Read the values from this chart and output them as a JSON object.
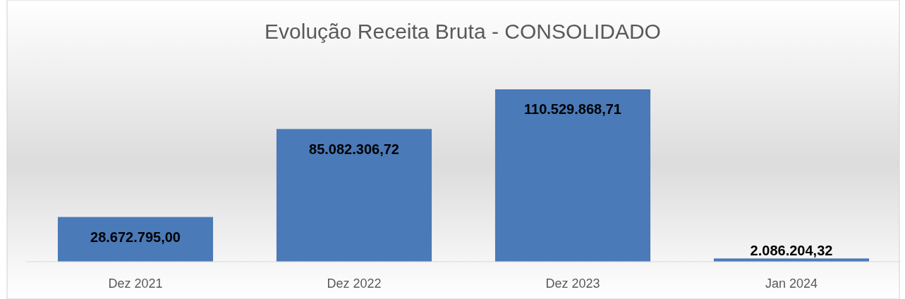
{
  "chart_data": {
    "type": "bar",
    "title": "Evolução Receita Bruta - CONSOLIDADO",
    "categories": [
      "Dez 2021",
      "Dez 2022",
      "Dez 2023",
      "Jan 2024"
    ],
    "values": [
      28672795.0,
      85082306.72,
      110529868.71,
      2086204.32
    ],
    "value_labels": [
      "28.672.795,00",
      "85.082.306,72",
      "110.529.868,71",
      "2.086.204,32"
    ],
    "color": "#4a7ab8",
    "grid": false
  }
}
